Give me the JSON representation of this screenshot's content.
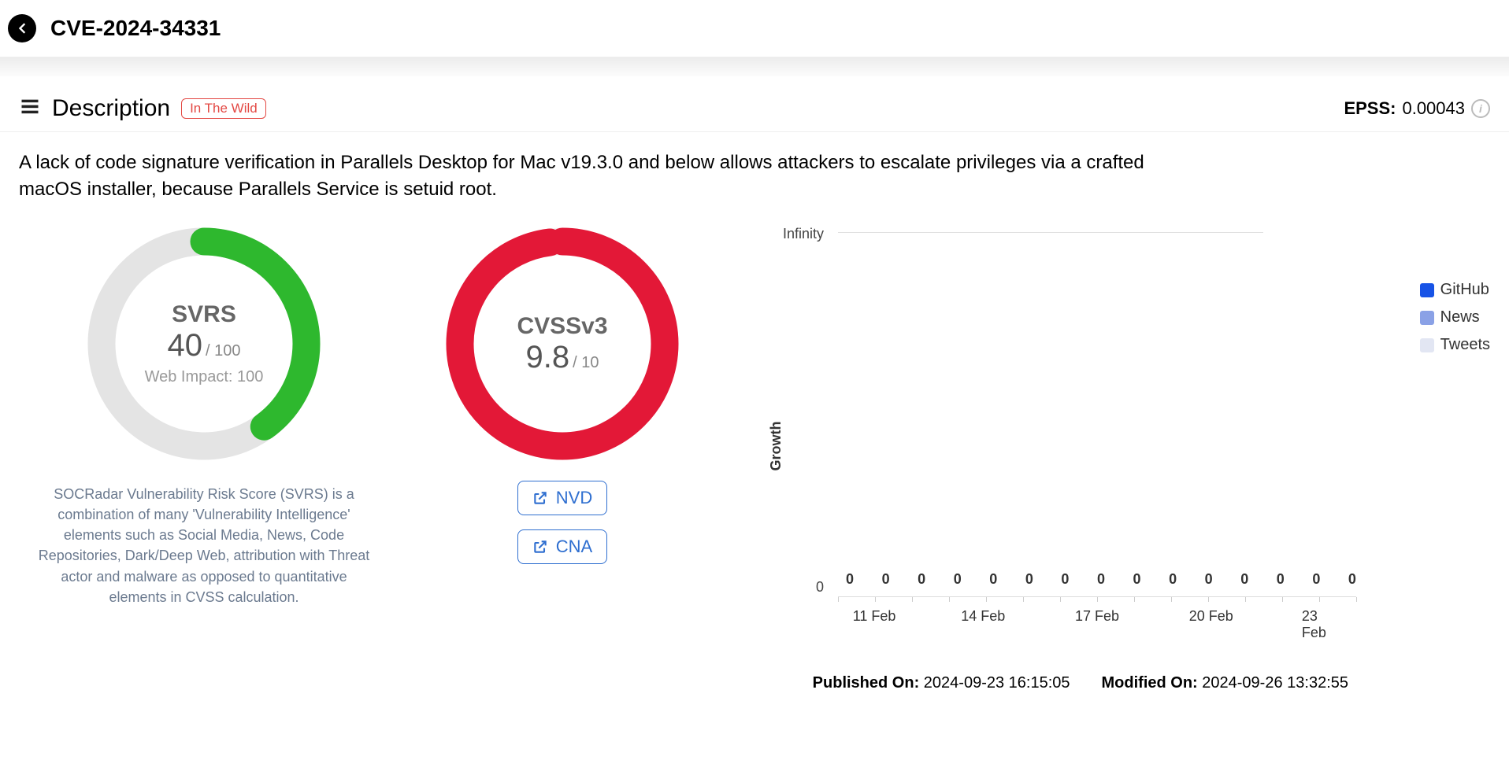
{
  "header": {
    "cve_id": "CVE-2024-34331"
  },
  "section": {
    "title": "Description",
    "badge": "In The Wild",
    "epss_label": "EPSS:",
    "epss_value": "0.00043"
  },
  "description_text": "A lack of code signature verification in Parallels Desktop for Mac v19.3.0 and below allows attackers to escalate privileges via a crafted macOS installer, because Parallels Service is setuid root.",
  "svrs": {
    "label": "SVRS",
    "value": "40",
    "max": "/ 100",
    "sub": "Web Impact: 100",
    "percent": 40,
    "track_color": "#e4e4e4",
    "fill_color": "#2eb82e",
    "note": "SOCRadar Vulnerability Risk Score (SVRS) is a combination of many 'Vulnerability Intelligence' elements such as Social Media, News, Code Repositories, Dark/Deep Web, attribution with Threat actor and malware as opposed to quantitative elements in CVSS calculation."
  },
  "cvss": {
    "label": "CVSSv3",
    "value": "9.8",
    "max": "/ 10",
    "percent": 98,
    "track_color": "#f2f2f2",
    "fill_color": "#e31837",
    "links": [
      {
        "label": "NVD"
      },
      {
        "label": "CNA"
      }
    ]
  },
  "chart": {
    "y_top": "Infinity",
    "y_bottom": "0",
    "y_label": "Growth",
    "zeros": [
      "0",
      "0",
      "0",
      "0",
      "0",
      "0",
      "0",
      "0",
      "0",
      "0",
      "0",
      "0",
      "0",
      "0",
      "0"
    ],
    "x_labels": [
      "11 Feb",
      "14 Feb",
      "17 Feb",
      "20 Feb",
      "23 Feb"
    ],
    "x_label_positions_pct": [
      7,
      28,
      50,
      72,
      93
    ],
    "legend": [
      {
        "label": "GitHub",
        "color": "#1753e6"
      },
      {
        "label": "News",
        "color": "#8aa1e6"
      },
      {
        "label": "Tweets",
        "color": "#e2e6f3"
      }
    ]
  },
  "dates": {
    "published_label": "Published On:",
    "published_value": "2024-09-23 16:15:05",
    "modified_label": "Modified On:",
    "modified_value": "2024-09-26 13:32:55"
  }
}
